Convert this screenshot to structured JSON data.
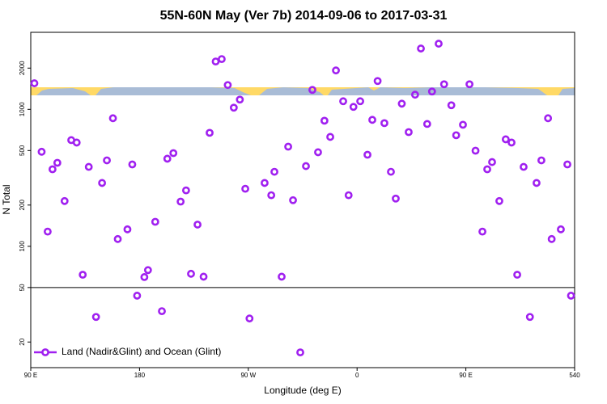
{
  "chart_data": {
    "type": "scatter",
    "title": "55N-60N May (Ver 7b)   2014-09-06 to 2017-03-31",
    "x_label": "Longitude (deg E)",
    "y_label": "N Total",
    "x": [
      93,
      99,
      104,
      108,
      112,
      118,
      123.5,
      128,
      133,
      138,
      144,
      149,
      153,
      158,
      162,
      170,
      174,
      178,
      184,
      187,
      193,
      198.5,
      203,
      208,
      214,
      218.5,
      222.6,
      228,
      233,
      238,
      243,
      248,
      253,
      258,
      263,
      267.5,
      271,
      283.5,
      289,
      291.6,
      297.6,
      303,
      307,
      313,
      317.7,
      323,
      327.7,
      333,
      337.8,
      342.5,
      348.5,
      353,
      357,
      362.6,
      368.6,
      372.6,
      377,
      382.6,
      388,
      392,
      397,
      402.7,
      408,
      412.8,
      418,
      422,
      427.5,
      432,
      438,
      442,
      447.6,
      453,
      458,
      463.7,
      467.7,
      471.7,
      477.7,
      483,
      487.8,
      492.5,
      497.8,
      503,
      508.5,
      512.5,
      518,
      521,
      528.6,
      534,
      537
    ],
    "series": [
      {
        "name": "Land (Nadir&Glint) and Ocean (Glint)",
        "color": "#a020f0",
        "values": [
          1550,
          490,
          128,
          365,
          407,
          214,
          596,
          572,
          62,
          380,
          30.5,
          290,
          424,
          861,
          113,
          133,
          396,
          43.6,
          59.6,
          67,
          151,
          33.6,
          436,
          479,
          212,
          256,
          63,
          144,
          60,
          674,
          2235,
          2328,
          1505,
          1028,
          1178,
          263,
          29.7,
          290,
          236,
          350,
          60,
          534,
          217,
          16.8,
          385,
          1387,
          486,
          826,
          629,
          1923,
          1146,
          236,
          1042,
          1146,
          466,
          838,
          1610,
          793,
          350,
          223,
          1100,
          682,
          1279,
          2780,
          782,
          1349,
          3015,
          1525,
          1071,
          647,
          772,
          1525,
          499,
          128,
          365,
          412,
          214,
          604,
          572,
          62,
          380,
          30.5,
          290,
          424,
          861,
          113,
          133,
          396,
          43.6
        ]
      }
    ],
    "xlim": [
      90,
      540
    ],
    "xticks": [
      {
        "value": 90,
        "label": "90 E"
      },
      180,
      {
        "value": 270,
        "label": "90 W"
      },
      {
        "value": 360,
        "label": "0"
      },
      {
        "value": 450,
        "label": "90 E"
      },
      540
    ],
    "ylim": [
      13,
      3650
    ],
    "yticks": [
      20,
      50,
      100,
      200,
      500,
      1000,
      2000
    ],
    "y_scale": "log",
    "reference_line": 50,
    "legend": "bottom-left"
  }
}
